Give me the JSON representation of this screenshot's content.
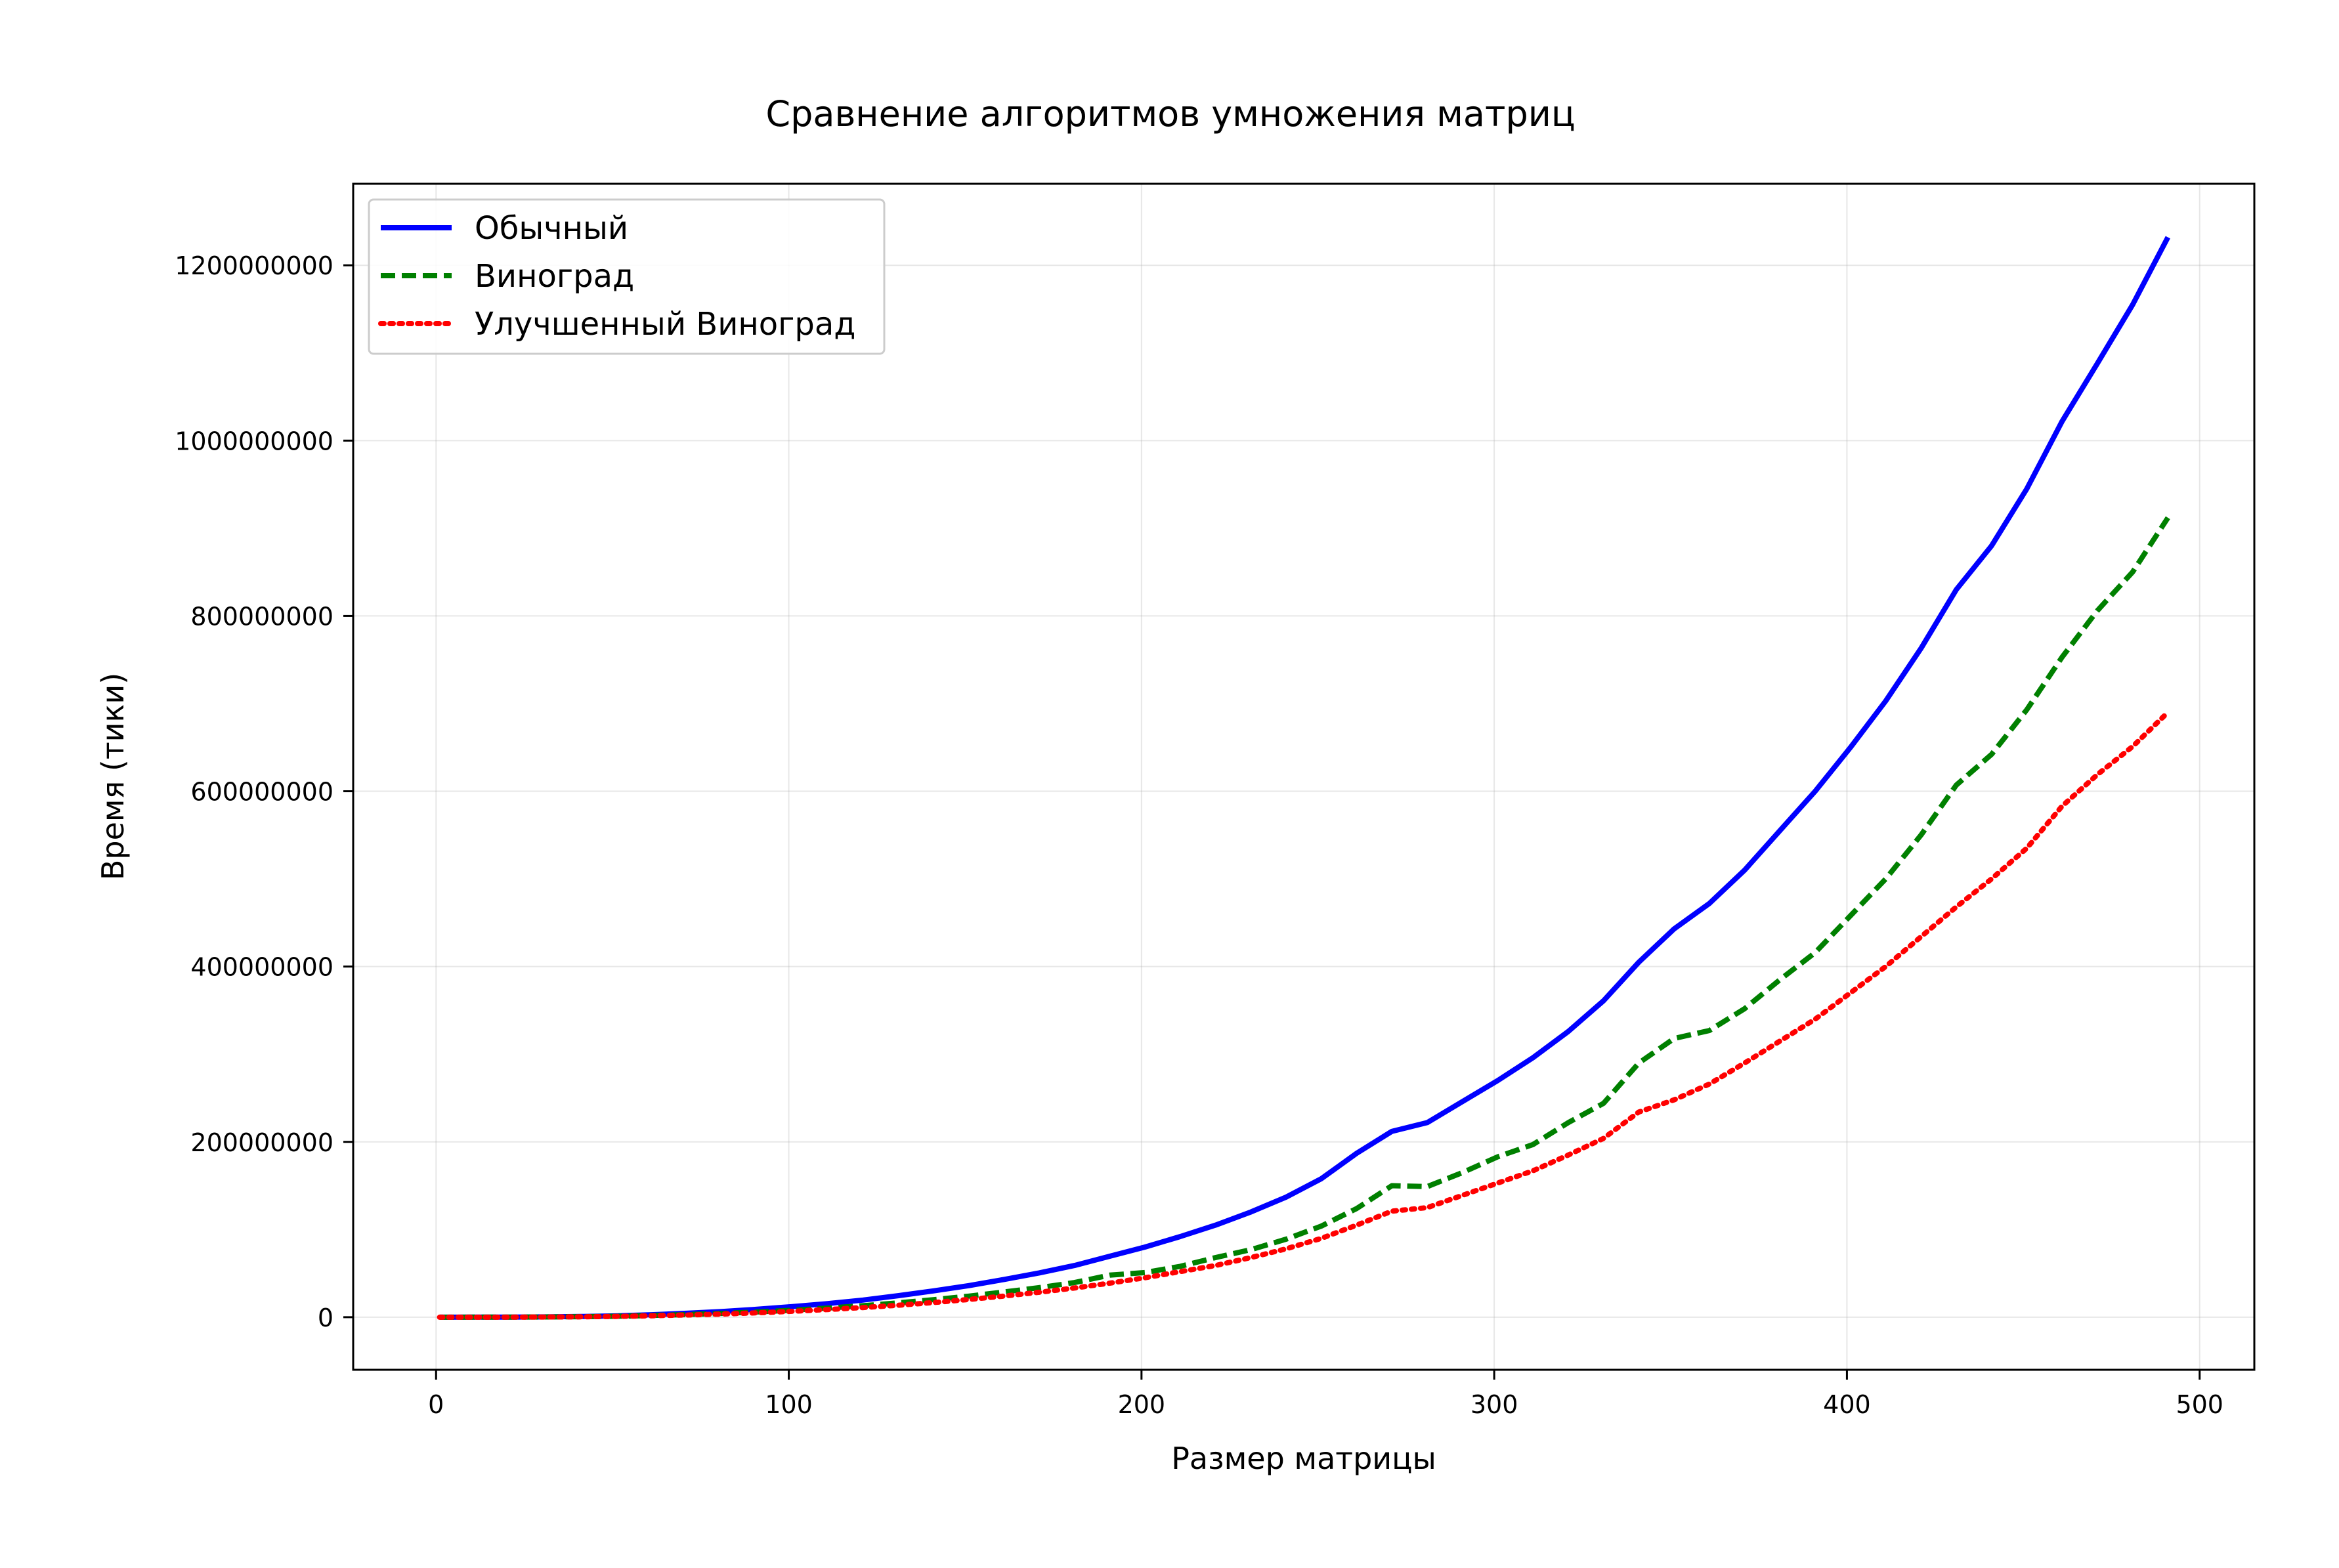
{
  "chart_data": {
    "type": "line",
    "title": "Сравнение алгоритмов умножения матриц",
    "xlabel": "Размер матрицы",
    "ylabel": "Время (тики)",
    "xlim": [
      -23.5,
      515.5
    ],
    "ylim": [
      -60000000,
      1293000000
    ],
    "xticks": [
      0,
      100,
      200,
      300,
      400,
      500
    ],
    "yticks": [
      0,
      200000000,
      400000000,
      600000000,
      800000000,
      1000000000,
      1200000000
    ],
    "xtick_labels": [
      "0",
      "100",
      "200",
      "300",
      "400",
      "500"
    ],
    "ytick_labels": [
      "0",
      "200000000",
      "400000000",
      "600000000",
      "800000000",
      "1000000000",
      "1200000000"
    ],
    "grid": true,
    "legend_position": "top-left",
    "x": [
      1,
      11,
      21,
      31,
      41,
      51,
      61,
      71,
      81,
      91,
      101,
      111,
      121,
      131,
      141,
      151,
      161,
      171,
      181,
      191,
      201,
      211,
      221,
      231,
      241,
      251,
      261,
      271,
      281,
      291,
      301,
      311,
      321,
      331,
      341,
      351,
      361,
      371,
      381,
      391,
      401,
      411,
      421,
      431,
      441,
      451,
      461,
      471,
      481,
      491
    ],
    "series": [
      {
        "name": "Обычный",
        "color": "#0000ff",
        "style": "solid",
        "values": [
          0,
          20000,
          100000,
          350000,
          800000,
          1500000,
          2800000,
          4500000,
          6500000,
          9000000,
          12000000,
          15500000,
          19500000,
          24500000,
          30000000,
          36000000,
          43000000,
          50500000,
          59000000,
          69500000,
          80000000,
          92000000,
          105000000,
          120000000,
          137000000,
          158000000,
          187000000,
          212000000,
          222000000,
          246000000,
          270000000,
          296000000,
          326000000,
          361000000,
          405000000,
          443000000,
          472000000,
          510000000,
          555000000,
          600000000,
          650000000,
          703000000,
          763000000,
          830000000,
          880000000,
          945000000,
          1022000000,
          1088000000,
          1155000000,
          1232000000
        ]
      },
      {
        "name": "Виноград",
        "color": "#008000",
        "style": "dashed",
        "values": [
          0,
          15000,
          70000,
          250000,
          550000,
          1000000,
          1900000,
          3000000,
          4300000,
          6000000,
          8000000,
          10400000,
          13100000,
          16300000,
          20000000,
          24000000,
          28700000,
          33700000,
          39500000,
          48000000,
          51000000,
          58000000,
          68000000,
          77000000,
          89000000,
          104000000,
          124000000,
          150000000,
          149000000,
          165000000,
          183000000,
          197000000,
          222000000,
          244000000,
          290000000,
          318000000,
          327000000,
          352000000,
          385000000,
          416000000,
          458000000,
          500000000,
          550000000,
          607000000,
          642000000,
          693000000,
          753000000,
          806000000,
          850000000,
          912000000
        ]
      },
      {
        "name": "Улучшенный Виноград",
        "color": "#ff0000",
        "style": "dotted",
        "values": [
          0,
          12000,
          55000,
          200000,
          450000,
          850000,
          1600000,
          2500000,
          3600000,
          5000000,
          6700000,
          8700000,
          11000000,
          13600000,
          16700000,
          20200000,
          24100000,
          28400000,
          33300000,
          38800000,
          45000000,
          52000000,
          59000000,
          68000000,
          78000000,
          90000000,
          105000000,
          121000000,
          125000000,
          139000000,
          153000000,
          167000000,
          185000000,
          204000000,
          234000000,
          248000000,
          266000000,
          290000000,
          315000000,
          340000000,
          370000000,
          400000000,
          434000000,
          468000000,
          500000000,
          535000000,
          583000000,
          619000000,
          651000000,
          690000000
        ]
      }
    ]
  }
}
